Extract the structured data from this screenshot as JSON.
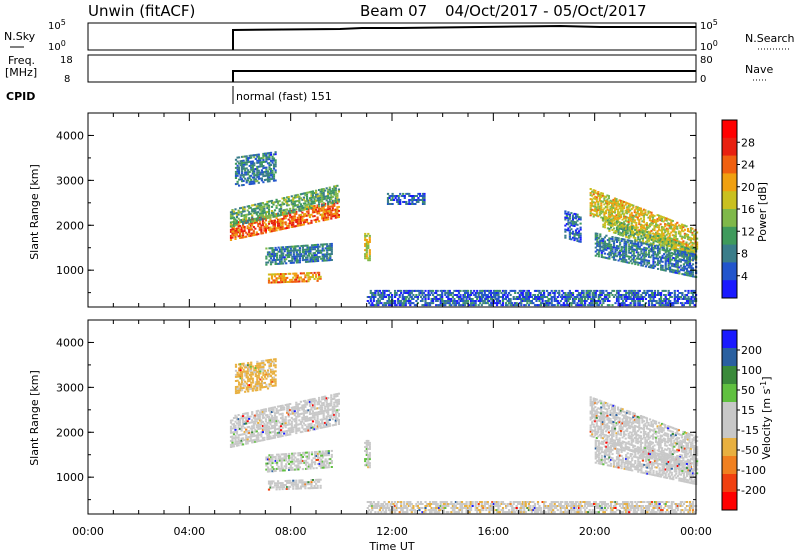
{
  "header": {
    "station": "Unwin (fitACF)",
    "beam": "Beam 07",
    "date_range": "04/Oct/2017 - 05/Oct/2017"
  },
  "strip_panels": {
    "nsky_label": "N.Sky",
    "nsky_ticks": [
      "10^5",
      "10^0"
    ],
    "nsearch_label": "N.Search",
    "nsearch_ticks": [
      "10^5",
      "10^0"
    ],
    "freq_label": "Freq.",
    "freq_unit": "[MHz]",
    "freq_ticks": [
      "18",
      "8"
    ],
    "nave_label": "Nave",
    "nave_ticks": [
      "80",
      "0"
    ],
    "cpid_label": "CPID",
    "cpid_value": "normal (fast) 151"
  },
  "colors": {
    "power": [
      "#1a1aff",
      "#2255cc",
      "#3a7d8a",
      "#3f9a5c",
      "#7fb84a",
      "#c9c020",
      "#f0a010",
      "#f06010",
      "#e82010",
      "#ff0000"
    ],
    "velocity": [
      "#ff0000",
      "#f04010",
      "#f08020",
      "#e8b040",
      "#c8c8c8",
      "#c8c8c8",
      "#60c040",
      "#3a8a3a",
      "#2a60a0",
      "#1a1aff"
    ]
  },
  "chart_data": [
    {
      "type": "heatmap",
      "name": "power",
      "ylabel": "Slant Range [km]",
      "xlabel": "Time UT",
      "x_ticks": [
        "00:00",
        "04:00",
        "08:00",
        "12:00",
        "16:00",
        "20:00",
        "00:00"
      ],
      "y_ticks": [
        "1000",
        "2000",
        "3000",
        "4000"
      ],
      "xlim_hours": [
        0,
        24
      ],
      "ylim_km": [
        180,
        4500
      ],
      "colorbar": {
        "label": "Power [dB]",
        "ticks": [
          "4",
          "8",
          "12",
          "16",
          "20",
          "24",
          "28"
        ],
        "range": [
          0,
          32
        ]
      },
      "echo_regions": [
        {
          "t0": 5.6,
          "t1": 9.9,
          "r0": 1650,
          "r1": 2050,
          "slope_km_per_h": 120,
          "level": 24
        },
        {
          "t0": 5.6,
          "t1": 9.9,
          "r0": 1950,
          "r1": 2350,
          "slope_km_per_h": 130,
          "level": 12
        },
        {
          "t0": 7.0,
          "t1": 9.6,
          "r0": 1100,
          "r1": 1500,
          "slope_km_per_h": 40,
          "level": 8
        },
        {
          "t0": 7.1,
          "t1": 9.2,
          "r0": 700,
          "r1": 900,
          "slope_km_per_h": 20,
          "level": 22
        },
        {
          "t0": 5.8,
          "t1": 7.4,
          "r0": 2850,
          "r1": 3500,
          "slope_km_per_h": 80,
          "level": 8
        },
        {
          "t0": 10.9,
          "t1": 11.1,
          "r0": 1200,
          "r1": 1800,
          "slope_km_per_h": 0,
          "level": 18
        },
        {
          "t0": 11.0,
          "t1": 24.0,
          "r0": 200,
          "r1": 550,
          "slope_km_per_h": 0,
          "level": 6
        },
        {
          "t0": 11.8,
          "t1": 13.3,
          "r0": 2450,
          "r1": 2700,
          "slope_km_per_h": 0,
          "level": 6
        },
        {
          "t0": 19.8,
          "t1": 24.0,
          "r0": 2200,
          "r1": 2800,
          "slope_km_per_h": -220,
          "level": 18
        },
        {
          "t0": 20.3,
          "t1": 24.0,
          "r0": 1900,
          "r1": 2200,
          "slope_km_per_h": -200,
          "level": 14
        },
        {
          "t0": 20.0,
          "t1": 24.0,
          "r0": 1300,
          "r1": 1800,
          "slope_km_per_h": -120,
          "level": 8
        },
        {
          "t0": 18.8,
          "t1": 19.4,
          "r0": 1700,
          "r1": 2300,
          "slope_km_per_h": -150,
          "level": 6
        }
      ]
    },
    {
      "type": "heatmap",
      "name": "velocity",
      "ylabel": "Slant Range [km]",
      "xlabel": "Time UT",
      "x_ticks": [
        "00:00",
        "04:00",
        "08:00",
        "12:00",
        "16:00",
        "20:00",
        "00:00"
      ],
      "y_ticks": [
        "1000",
        "2000",
        "3000",
        "4000"
      ],
      "xlim_hours": [
        0,
        24
      ],
      "ylim_km": [
        180,
        4500
      ],
      "colorbar": {
        "label": "Velocity [m s^-1]",
        "ticks": [
          "200",
          "100",
          "50",
          "15",
          "-15",
          "-50",
          "-100",
          "-200"
        ],
        "range": [
          -250,
          250
        ]
      },
      "echo_regions": [
        {
          "t0": 5.6,
          "t1": 9.9,
          "r0": 1650,
          "r1": 2350,
          "slope_km_per_h": 120,
          "level": 0
        },
        {
          "t0": 7.0,
          "t1": 9.6,
          "r0": 1100,
          "r1": 1500,
          "slope_km_per_h": 40,
          "level": 40
        },
        {
          "t0": 7.1,
          "t1": 9.2,
          "r0": 700,
          "r1": 900,
          "slope_km_per_h": 20,
          "level": 0
        },
        {
          "t0": 5.8,
          "t1": 7.4,
          "r0": 2850,
          "r1": 3500,
          "slope_km_per_h": 80,
          "level": -60
        },
        {
          "t0": 10.9,
          "t1": 11.1,
          "r0": 1200,
          "r1": 1800,
          "slope_km_per_h": 0,
          "level": 40
        },
        {
          "t0": 11.0,
          "t1": 24.0,
          "r0": 200,
          "r1": 450,
          "slope_km_per_h": 0,
          "level": -40
        },
        {
          "t0": 19.8,
          "t1": 24.0,
          "r0": 1900,
          "r1": 2800,
          "slope_km_per_h": -210,
          "level": 0
        },
        {
          "t0": 20.0,
          "t1": 24.0,
          "r0": 1300,
          "r1": 1800,
          "slope_km_per_h": -120,
          "level": 0
        }
      ]
    }
  ]
}
